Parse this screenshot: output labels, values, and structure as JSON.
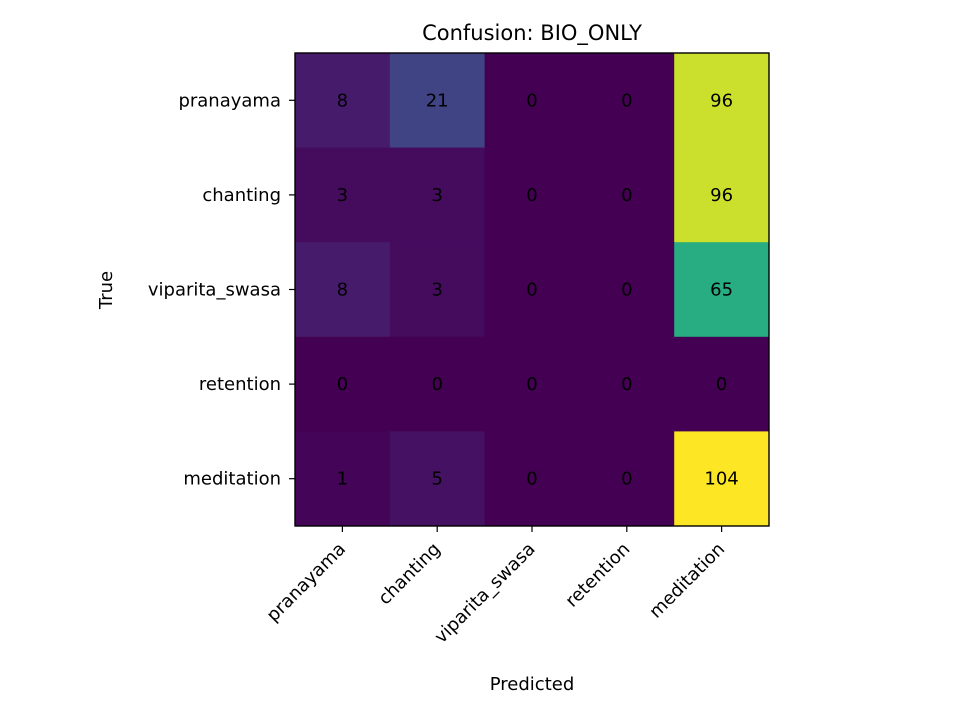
{
  "chart_data": {
    "type": "heatmap",
    "title": "Confusion: BIO_ONLY",
    "xlabel": "Predicted",
    "ylabel": "True",
    "x_categories": [
      "pranayama",
      "chanting",
      "viparita_swasa",
      "retention",
      "meditation"
    ],
    "y_categories": [
      "pranayama",
      "chanting",
      "viparita_swasa",
      "retention",
      "meditation"
    ],
    "matrix": [
      [
        8,
        21,
        0,
        0,
        96
      ],
      [
        3,
        3,
        0,
        0,
        96
      ],
      [
        8,
        3,
        0,
        0,
        65
      ],
      [
        0,
        0,
        0,
        0,
        0
      ],
      [
        1,
        5,
        0,
        0,
        104
      ]
    ],
    "colormap": "viridis",
    "value_range": [
      0,
      104
    ],
    "grid": false
  }
}
